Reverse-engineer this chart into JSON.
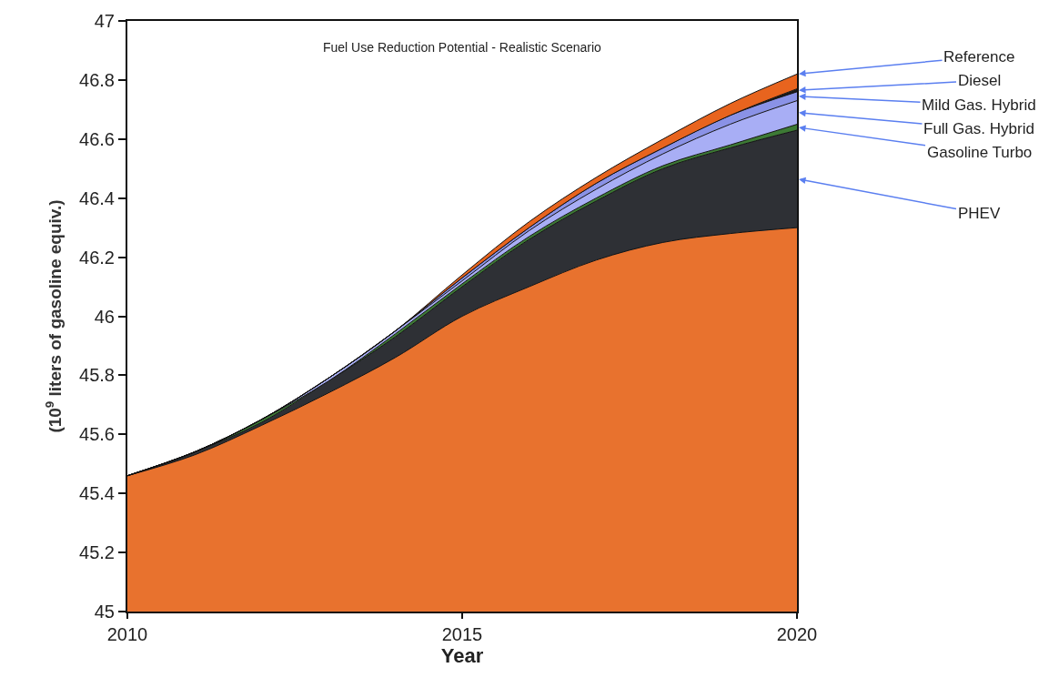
{
  "chart_data": {
    "type": "area",
    "title": "Fuel Use Reduction Potential - Realistic Scenario",
    "xlabel": "Year",
    "ylabel": "(10$^{9}$ liters of gasoline equiv.)",
    "x": [
      2010,
      2011,
      2012,
      2013,
      2014,
      2015,
      2016,
      2017,
      2018,
      2019,
      2020
    ],
    "series": [
      {
        "color": "#e8722e",
        "values": [
          45.46,
          45.53,
          45.63,
          45.74,
          45.86,
          46.0,
          46.1,
          46.19,
          46.25,
          46.28,
          46.3
        ]
      },
      {
        "name": "PHEV",
        "color": "#2e3035",
        "values": [
          45.46,
          45.54,
          45.64,
          45.78,
          45.93,
          46.1,
          46.26,
          46.39,
          46.5,
          46.57,
          46.63
        ]
      },
      {
        "name": "Gasoline Turbo",
        "color": "#3d7a35",
        "values": [
          45.46,
          45.54,
          45.65,
          45.78,
          45.94,
          46.11,
          46.27,
          46.4,
          46.51,
          46.58,
          46.65
        ]
      },
      {
        "name": "Full Gas. Hybrid",
        "color": "#a8aef5",
        "values": [
          45.46,
          45.54,
          45.65,
          45.79,
          45.95,
          46.12,
          46.29,
          46.43,
          46.55,
          46.65,
          46.73
        ]
      },
      {
        "name": "Mild Gas. Hybrid",
        "color": "#8a92e6",
        "values": [
          45.46,
          45.54,
          45.65,
          45.79,
          45.95,
          46.13,
          46.3,
          46.45,
          46.57,
          46.68,
          46.76
        ]
      },
      {
        "name": "Diesel",
        "color": "#1a1a1a",
        "values": [
          45.46,
          45.54,
          45.65,
          45.79,
          45.95,
          46.13,
          46.3,
          46.45,
          46.57,
          46.68,
          46.77
        ]
      },
      {
        "name": "Reference",
        "color": "#e8641e",
        "values": [
          45.46,
          45.54,
          45.65,
          45.79,
          45.95,
          46.14,
          46.32,
          46.47,
          46.6,
          46.72,
          46.82
        ]
      }
    ],
    "xlim": [
      2010,
      2020
    ],
    "xticks": [
      2010,
      2015,
      2020
    ],
    "ylim": [
      45,
      47
    ],
    "yticks": [
      45,
      45.2,
      45.4,
      45.6,
      45.8,
      46,
      46.2,
      46.4,
      46.6,
      46.8,
      47
    ],
    "legend": false
  }
}
